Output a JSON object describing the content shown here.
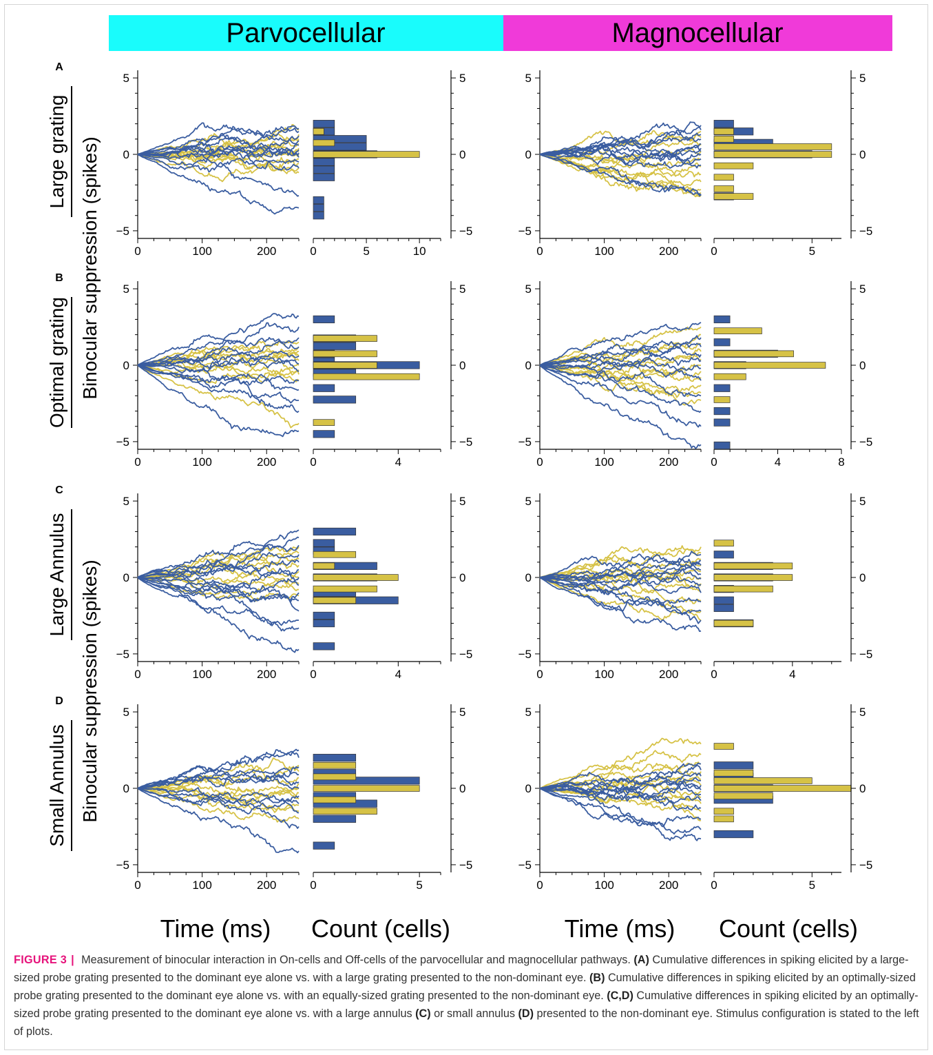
{
  "header": {
    "parvo_label": "Parvocellular",
    "magno_label": "Magnocellular",
    "parvo_color": "#19fcfc",
    "magno_color": "#f03ad9"
  },
  "series_colors": {
    "on": "#3a5da0",
    "off": "#d6c246"
  },
  "row_labels": [
    {
      "panel": "A",
      "stimulus": "Large grating"
    },
    {
      "panel": "B",
      "stimulus": "Optimal grating"
    },
    {
      "panel": "C",
      "stimulus": "Large Annulus"
    },
    {
      "panel": "D",
      "stimulus": "Small  Annulus"
    }
  ],
  "ylabel": "Binocular suppression (spikes)",
  "xlabel_time": "Time (ms)",
  "xlabel_count": "Count (cells)",
  "caption": {
    "figure_number": "FIGURE 3",
    "separator": "|",
    "s1": "Measurement of binocular interaction in On-cells and Off-cells of the parvocellular and magnocellular pathways.",
    "tA": "(A)",
    "s2": "Cumulative differences in spiking elicited by a large-sized probe grating presented to the dominant eye alone vs. with a large grating presented to the non-dominant eye.",
    "tB": "(B)",
    "s3": "Cumulative differences in spiking elicited by an optimally-sized probe grating presented to the dominant eye alone vs. with an equally-sized grating presented to the non-dominant eye.",
    "tCD": "(C,D)",
    "s4": "Cumulative differences in spiking elicited by an optimally-sized probe grating presented to the dominant eye alone vs. with a large annulus",
    "tC": "(C)",
    "s5": "or small annulus",
    "tD": "(D)",
    "s6": "presented to the non-dominant eye. Stimulus configuration is stated to the left of plots."
  },
  "chart_data": [
    {
      "panel": "A",
      "pathway": "Parvocellular",
      "type": "line",
      "xlim": [
        0,
        250
      ],
      "ylim": [
        -5.5,
        5.5
      ],
      "x_ticks": [
        0,
        100,
        200
      ],
      "y_ticks": [
        -5,
        0,
        5
      ],
      "on_final": [
        1.7,
        1.5,
        1.2,
        0.9,
        0.6,
        0.3,
        0.1,
        -0.2,
        -0.5,
        -0.9,
        -2.7,
        -3.5
      ],
      "off_final": [
        1.6,
        1.3,
        1.0,
        0.7,
        0.4,
        0.2,
        0.0,
        -0.3,
        -0.6,
        -0.9,
        -1.2
      ]
    },
    {
      "panel": "A",
      "pathway": "Parvocellular",
      "type": "bar",
      "orientation": "horizontal",
      "xlim": [
        0,
        12
      ],
      "x_ticks": [
        0,
        5,
        10
      ],
      "ylim": [
        -5.5,
        5.5
      ],
      "y_ticks": [
        -5,
        0,
        5
      ],
      "on_bins": [
        {
          "y": 2.0,
          "count": 2
        },
        {
          "y": 1.5,
          "count": 2
        },
        {
          "y": 1.0,
          "count": 5
        },
        {
          "y": 0.5,
          "count": 5
        },
        {
          "y": 0.0,
          "count": 6
        },
        {
          "y": -0.5,
          "count": 2
        },
        {
          "y": -1.0,
          "count": 2
        },
        {
          "y": -1.5,
          "count": 2
        },
        {
          "y": -3.0,
          "count": 1
        },
        {
          "y": -3.5,
          "count": 1
        },
        {
          "y": -4.0,
          "count": 1
        }
      ],
      "off_bins": [
        {
          "y": 1.5,
          "count": 1
        },
        {
          "y": 0.75,
          "count": 2
        },
        {
          "y": 0.0,
          "count": 10
        }
      ]
    },
    {
      "panel": "A",
      "pathway": "Magnocellular",
      "type": "line",
      "xlim": [
        0,
        250
      ],
      "ylim": [
        -5.5,
        5.5
      ],
      "x_ticks": [
        0,
        100,
        200
      ],
      "y_ticks": [
        -5,
        0,
        5
      ],
      "on_final": [
        1.9,
        1.6,
        1.3,
        1.0,
        0.7,
        0.4,
        0.2,
        0.0,
        -0.3,
        -0.7,
        -2.6,
        -2.7
      ],
      "off_final": [
        1.5,
        1.1,
        0.6,
        0.2,
        -0.3,
        -0.8,
        -1.3,
        -1.8,
        -2.3,
        -2.5,
        -2.7
      ]
    },
    {
      "panel": "A",
      "pathway": "Magnocellular",
      "type": "bar",
      "orientation": "horizontal",
      "xlim": [
        0,
        6.5
      ],
      "x_ticks": [
        0,
        5
      ],
      "ylim": [
        -5.5,
        5.5
      ],
      "y_ticks": [
        -5,
        0,
        5
      ],
      "on_bins": [
        {
          "y": 2.0,
          "count": 1
        },
        {
          "y": 1.5,
          "count": 2
        },
        {
          "y": 0.75,
          "count": 3
        },
        {
          "y": 0.0,
          "count": 5
        },
        {
          "y": -2.75,
          "count": 1
        }
      ],
      "off_bins": [
        {
          "y": 1.5,
          "count": 1
        },
        {
          "y": 1.0,
          "count": 1
        },
        {
          "y": 0.5,
          "count": 6
        },
        {
          "y": 0.0,
          "count": 6
        },
        {
          "y": -0.75,
          "count": 2
        },
        {
          "y": -1.5,
          "count": 1
        },
        {
          "y": -2.25,
          "count": 1
        },
        {
          "y": -2.75,
          "count": 2
        }
      ]
    },
    {
      "panel": "B",
      "pathway": "Parvocellular",
      "type": "line",
      "xlim": [
        0,
        250
      ],
      "ylim": [
        -5.5,
        5.5
      ],
      "x_ticks": [
        0,
        100,
        200
      ],
      "y_ticks": [
        -5,
        0,
        5
      ],
      "on_final": [
        3.2,
        2.5,
        1.8,
        1.2,
        0.6,
        0.1,
        -0.4,
        -1.0,
        -1.6,
        -2.3,
        -3.0,
        -4.3
      ],
      "off_final": [
        1.5,
        1.2,
        0.9,
        0.6,
        0.3,
        0.0,
        -0.3,
        -0.6,
        -1.0,
        -3.8
      ]
    },
    {
      "panel": "B",
      "pathway": "Parvocellular",
      "type": "bar",
      "orientation": "horizontal",
      "xlim": [
        0,
        6
      ],
      "x_ticks": [
        0,
        4
      ],
      "ylim": [
        -5.5,
        5.5
      ],
      "y_ticks": [
        -5,
        0,
        5
      ],
      "on_bins": [
        {
          "y": 3.0,
          "count": 1
        },
        {
          "y": 1.75,
          "count": 2
        },
        {
          "y": 1.25,
          "count": 2
        },
        {
          "y": 0.75,
          "count": 1
        },
        {
          "y": 0.25,
          "count": 1
        },
        {
          "y": 0.0,
          "count": 5
        },
        {
          "y": -0.5,
          "count": 2
        },
        {
          "y": -1.5,
          "count": 1
        },
        {
          "y": -2.25,
          "count": 2
        },
        {
          "y": -4.5,
          "count": 1
        }
      ],
      "off_bins": [
        {
          "y": 1.75,
          "count": 3
        },
        {
          "y": 0.75,
          "count": 3
        },
        {
          "y": 0.0,
          "count": 3
        },
        {
          "y": -0.75,
          "count": 5
        },
        {
          "y": -3.75,
          "count": 1
        }
      ]
    },
    {
      "panel": "B",
      "pathway": "Magnocellular",
      "type": "line",
      "xlim": [
        0,
        250
      ],
      "ylim": [
        -5.5,
        5.5
      ],
      "x_ticks": [
        0,
        100,
        200
      ],
      "y_ticks": [
        -5,
        0,
        5
      ],
      "on_final": [
        2.8,
        1.8,
        1.2,
        0.7,
        0.3,
        -0.2,
        -1.0,
        -2.0,
        -3.0,
        -4.0,
        -5.2
      ],
      "off_final": [
        2.5,
        2.0,
        1.4,
        0.9,
        0.4,
        0.0,
        -0.4,
        -0.8,
        -1.3,
        -1.8,
        -2.3
      ]
    },
    {
      "panel": "B",
      "pathway": "Magnocellular",
      "type": "bar",
      "orientation": "horizontal",
      "xlim": [
        0,
        8
      ],
      "x_ticks": [
        0,
        4,
        8
      ],
      "ylim": [
        -5.5,
        5.5
      ],
      "y_ticks": [
        -5,
        0,
        5
      ],
      "on_bins": [
        {
          "y": 3.0,
          "count": 1
        },
        {
          "y": 1.5,
          "count": 1
        },
        {
          "y": 0.75,
          "count": 4
        },
        {
          "y": 0.0,
          "count": 2
        },
        {
          "y": -1.5,
          "count": 1
        },
        {
          "y": -3.0,
          "count": 1
        },
        {
          "y": -3.75,
          "count": 1
        },
        {
          "y": -5.25,
          "count": 1
        }
      ],
      "off_bins": [
        {
          "y": 2.25,
          "count": 3
        },
        {
          "y": 0.75,
          "count": 5
        },
        {
          "y": 0.0,
          "count": 7
        },
        {
          "y": -0.75,
          "count": 2
        },
        {
          "y": -2.25,
          "count": 1
        }
      ]
    },
    {
      "panel": "C",
      "pathway": "Parvocellular",
      "type": "line",
      "xlim": [
        0,
        250
      ],
      "ylim": [
        -5.5,
        5.5
      ],
      "x_ticks": [
        0,
        100,
        200
      ],
      "y_ticks": [
        -5,
        0,
        5
      ],
      "on_final": [
        3.1,
        2.6,
        2.1,
        1.5,
        1.0,
        0.5,
        0.0,
        -0.5,
        -1.0,
        -1.5,
        -2.2,
        -2.8,
        -3.3,
        -4.7
      ],
      "off_final": [
        2.0,
        1.6,
        1.2,
        0.8,
        0.4,
        0.0,
        -0.4,
        -0.8,
        -1.2
      ]
    },
    {
      "panel": "C",
      "pathway": "Parvocellular",
      "type": "bar",
      "orientation": "horizontal",
      "xlim": [
        0,
        6
      ],
      "x_ticks": [
        0,
        4
      ],
      "ylim": [
        -5.5,
        5.5
      ],
      "y_ticks": [
        -5,
        0,
        5
      ],
      "on_bins": [
        {
          "y": 3.0,
          "count": 2
        },
        {
          "y": 2.25,
          "count": 1
        },
        {
          "y": 1.75,
          "count": 1
        },
        {
          "y": 0.75,
          "count": 3
        },
        {
          "y": 0.0,
          "count": 3
        },
        {
          "y": -1.0,
          "count": 2
        },
        {
          "y": -1.5,
          "count": 4
        },
        {
          "y": -2.5,
          "count": 1
        },
        {
          "y": -3.0,
          "count": 1
        },
        {
          "y": -4.5,
          "count": 1
        }
      ],
      "off_bins": [
        {
          "y": 1.5,
          "count": 2
        },
        {
          "y": 0.75,
          "count": 1
        },
        {
          "y": 0.0,
          "count": 4
        },
        {
          "y": -0.75,
          "count": 3
        },
        {
          "y": -1.5,
          "count": 2
        }
      ]
    },
    {
      "panel": "C",
      "pathway": "Magnocellular",
      "type": "line",
      "xlim": [
        0,
        250
      ],
      "ylim": [
        -5.5,
        5.5
      ],
      "x_ticks": [
        0,
        100,
        200
      ],
      "y_ticks": [
        -5,
        0,
        5
      ],
      "on_final": [
        1.5,
        1.1,
        0.8,
        0.5,
        0.2,
        -0.1,
        -0.5,
        -1.0,
        -1.6,
        -2.2,
        -2.8,
        -3.5
      ],
      "off_final": [
        2.0,
        1.6,
        1.2,
        0.8,
        0.4,
        0.0,
        -0.4,
        -0.9,
        -1.5,
        -2.2,
        -2.8
      ]
    },
    {
      "panel": "C",
      "pathway": "Magnocellular",
      "type": "bar",
      "orientation": "horizontal",
      "xlim": [
        0,
        6.5
      ],
      "x_ticks": [
        0,
        4
      ],
      "ylim": [
        -5.5,
        5.5
      ],
      "y_ticks": [
        -5,
        0,
        5
      ],
      "on_bins": [
        {
          "y": 1.5,
          "count": 1
        },
        {
          "y": 0.75,
          "count": 3
        },
        {
          "y": 0.0,
          "count": 3
        },
        {
          "y": -0.75,
          "count": 1
        },
        {
          "y": -1.5,
          "count": 1
        },
        {
          "y": -2.0,
          "count": 1
        },
        {
          "y": -3.0,
          "count": 2
        }
      ],
      "off_bins": [
        {
          "y": 2.25,
          "count": 1
        },
        {
          "y": 0.75,
          "count": 4
        },
        {
          "y": 0.0,
          "count": 4
        },
        {
          "y": -0.75,
          "count": 3
        },
        {
          "y": -3.0,
          "count": 2
        }
      ]
    },
    {
      "panel": "D",
      "pathway": "Parvocellular",
      "type": "line",
      "xlim": [
        0,
        250
      ],
      "ylim": [
        -5.5,
        5.5
      ],
      "x_ticks": [
        0,
        100,
        200
      ],
      "y_ticks": [
        -5,
        0,
        5
      ],
      "on_final": [
        2.5,
        2.0,
        1.4,
        0.9,
        0.4,
        0.0,
        -0.5,
        -1.0,
        -1.6,
        -2.5,
        -4.1
      ],
      "off_final": [
        1.5,
        1.1,
        0.7,
        0.3,
        0.0,
        -0.3,
        -0.7,
        -1.1,
        -1.5,
        -2.0
      ]
    },
    {
      "panel": "D",
      "pathway": "Parvocellular",
      "type": "bar",
      "orientation": "horizontal",
      "xlim": [
        0,
        6
      ],
      "x_ticks": [
        0,
        5
      ],
      "ylim": [
        -5.5,
        5.5
      ],
      "y_ticks": [
        -5,
        0,
        5
      ],
      "on_bins": [
        {
          "y": 2.0,
          "count": 2
        },
        {
          "y": 1.0,
          "count": 2
        },
        {
          "y": 0.5,
          "count": 5
        },
        {
          "y": -0.5,
          "count": 2
        },
        {
          "y": -1.0,
          "count": 3
        },
        {
          "y": -2.0,
          "count": 2
        },
        {
          "y": -3.75,
          "count": 1
        }
      ],
      "off_bins": [
        {
          "y": 1.5,
          "count": 2
        },
        {
          "y": 0.75,
          "count": 2
        },
        {
          "y": 0.0,
          "count": 5
        },
        {
          "y": -0.75,
          "count": 2
        },
        {
          "y": -1.5,
          "count": 3
        }
      ]
    },
    {
      "panel": "D",
      "pathway": "Magnocellular",
      "type": "line",
      "xlim": [
        0,
        250
      ],
      "ylim": [
        -5.5,
        5.5
      ],
      "x_ticks": [
        0,
        100,
        200
      ],
      "y_ticks": [
        -5,
        0,
        5
      ],
      "on_final": [
        1.6,
        1.2,
        0.8,
        0.5,
        0.2,
        -0.1,
        -0.4,
        -0.8,
        -1.3,
        -2.0,
        -2.7,
        -3.3
      ],
      "off_final": [
        2.9,
        2.2,
        1.6,
        1.1,
        0.6,
        0.2,
        -0.2,
        -0.6,
        -1.0,
        -1.5,
        -2.1
      ]
    },
    {
      "panel": "D",
      "pathway": "Magnocellular",
      "type": "bar",
      "orientation": "horizontal",
      "xlim": [
        0,
        6.5
      ],
      "x_ticks": [
        0,
        5
      ],
      "ylim": [
        -5.5,
        5.5
      ],
      "y_ticks": [
        -5,
        0,
        5
      ],
      "on_bins": [
        {
          "y": 1.5,
          "count": 2
        },
        {
          "y": 0.75,
          "count": 2
        },
        {
          "y": 0.0,
          "count": 3
        },
        {
          "y": -0.75,
          "count": 3
        },
        {
          "y": -3.0,
          "count": 2
        }
      ],
      "off_bins": [
        {
          "y": 2.75,
          "count": 1
        },
        {
          "y": 1.0,
          "count": 2
        },
        {
          "y": 0.5,
          "count": 5
        },
        {
          "y": 0.0,
          "count": 7
        },
        {
          "y": -0.5,
          "count": 3
        },
        {
          "y": -1.5,
          "count": 1
        },
        {
          "y": -2.0,
          "count": 1
        }
      ]
    }
  ]
}
